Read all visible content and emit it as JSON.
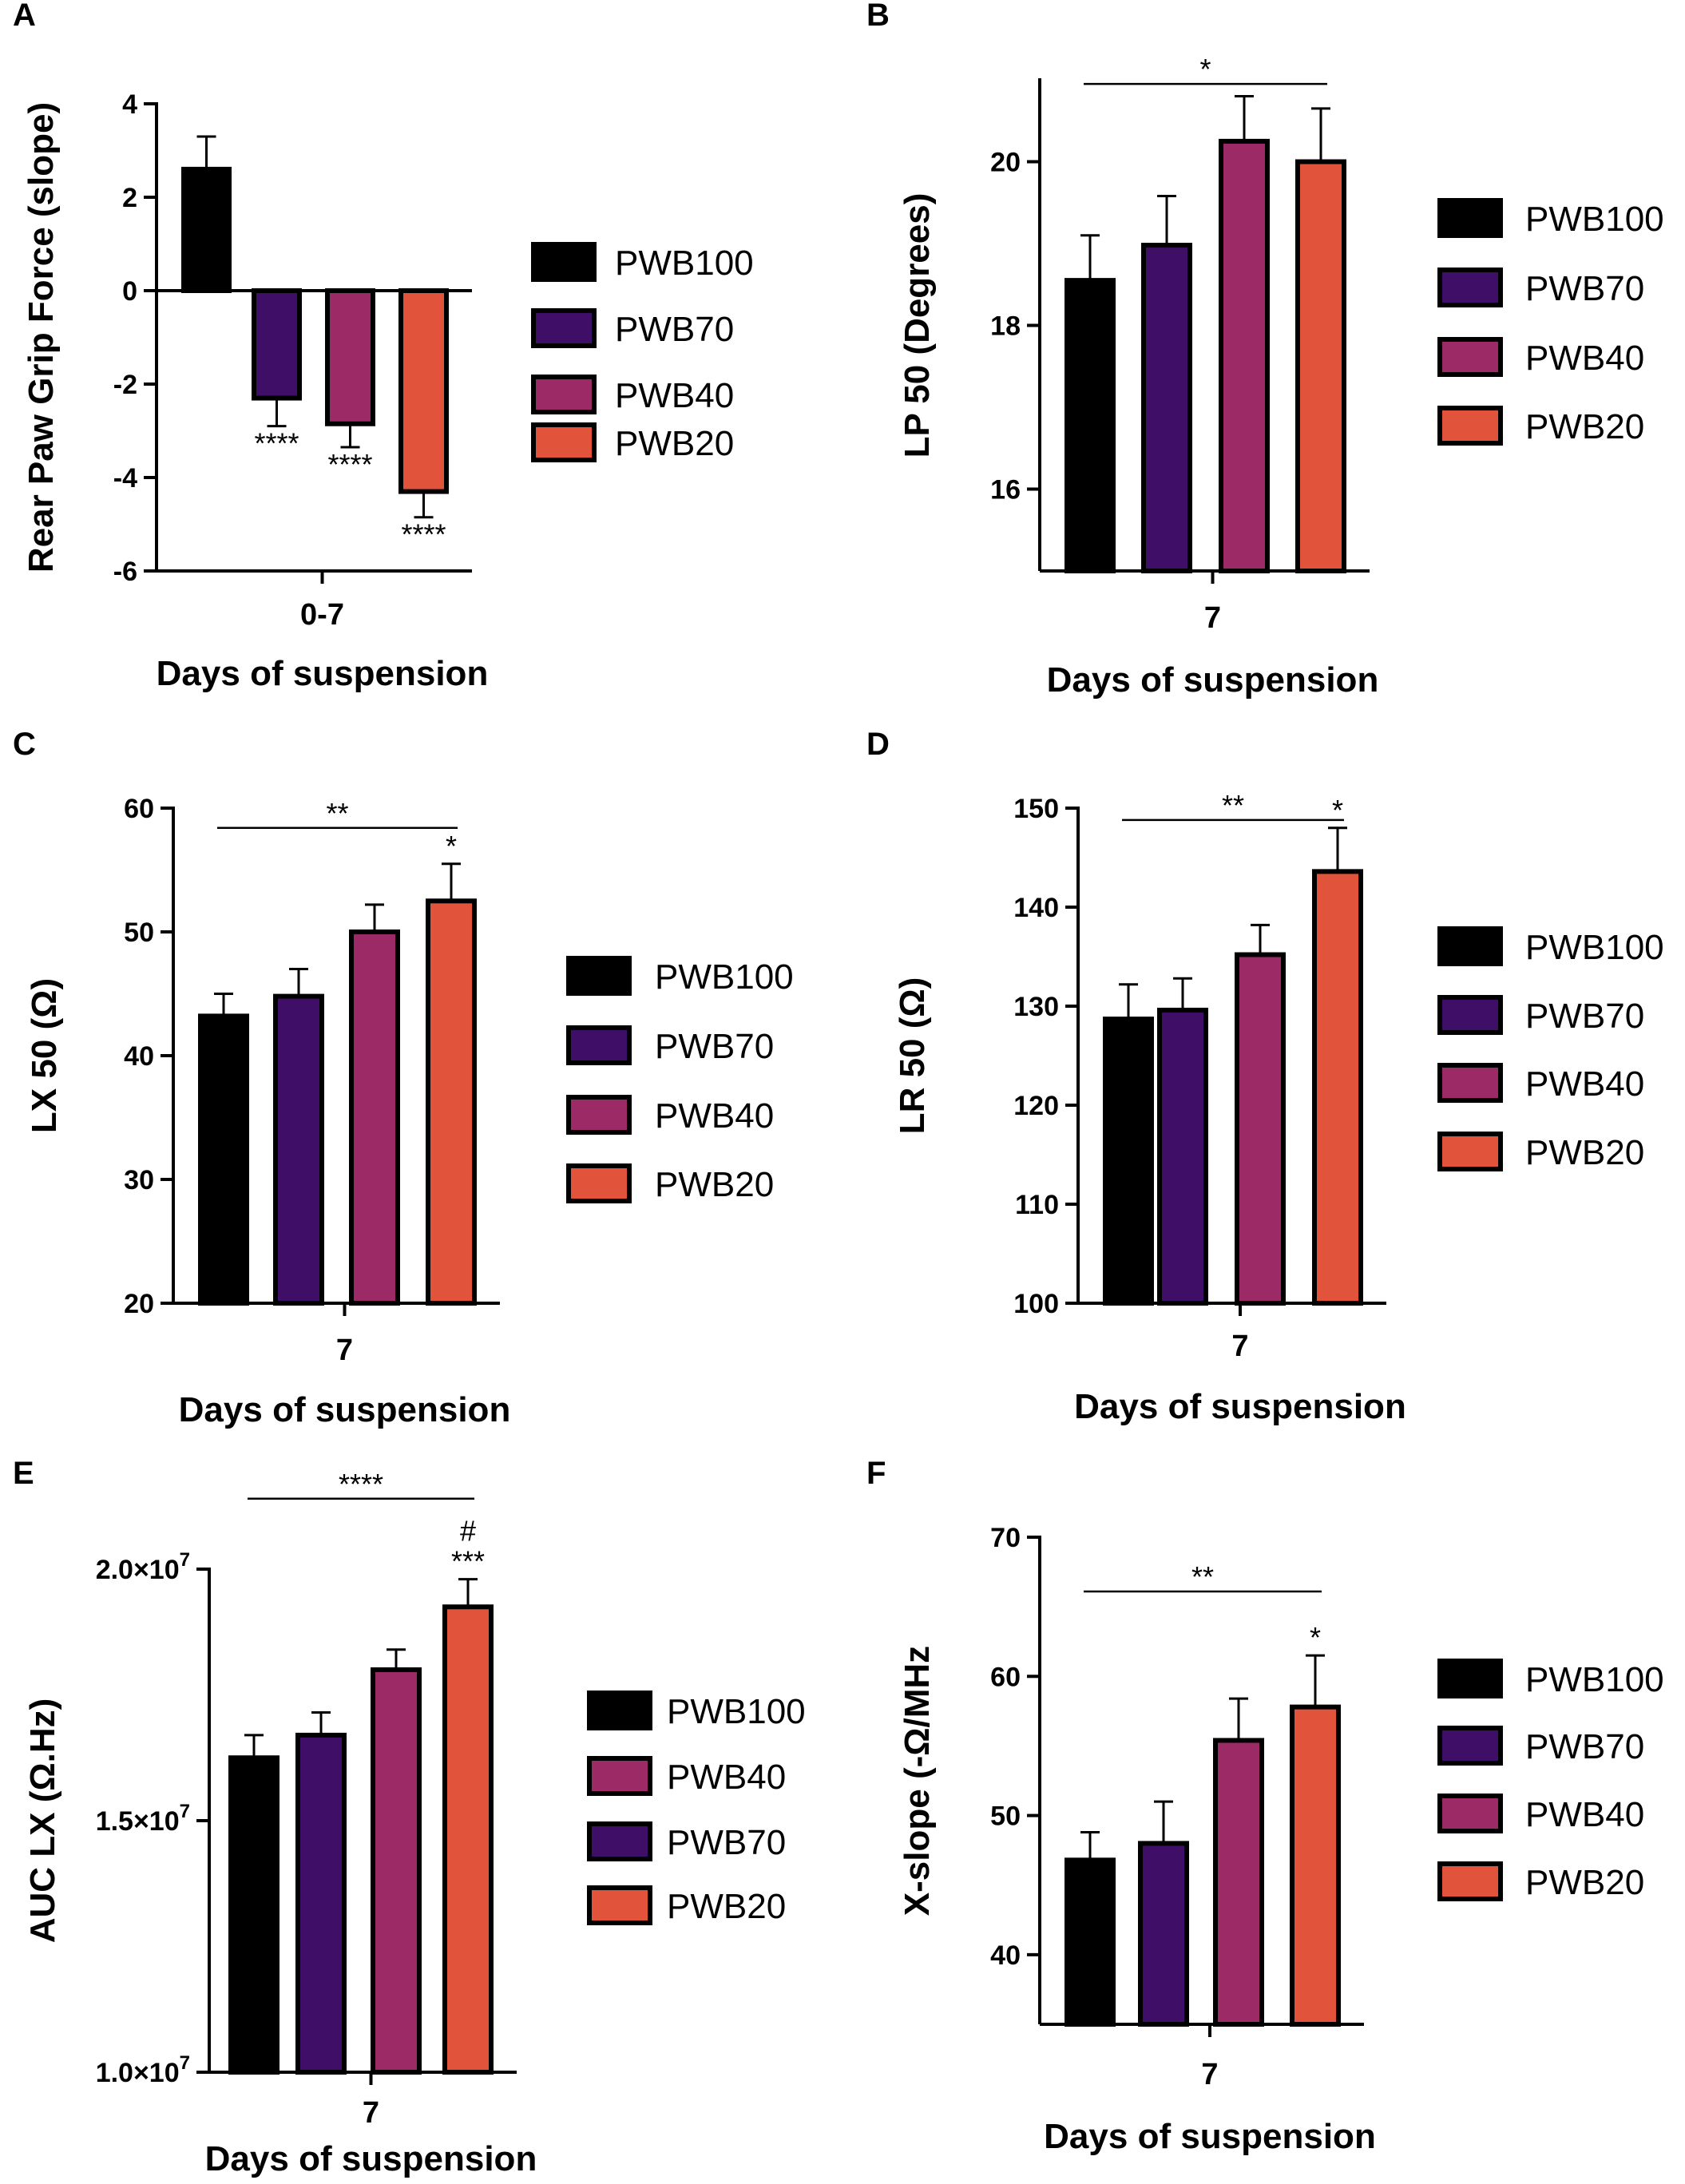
{
  "figure": {
    "colors": {
      "PWB100": "#000000",
      "PWB70": "#3f0e66",
      "PWB40": "#9c2a66",
      "PWB20": "#e2533c",
      "axis": "#000000"
    }
  },
  "chart_data": [
    {
      "panel": "A",
      "type": "bar",
      "ylabel": "Rear Paw Grip  Force (slope)",
      "xlabel": "Days of suspension",
      "category": "0-7",
      "ylim": [
        -6,
        4
      ],
      "yticks": [
        -6,
        -4,
        -2,
        0,
        2,
        4
      ],
      "ytick_labels": [
        "-6",
        "-4",
        "-2",
        "0",
        "2",
        "4"
      ],
      "series": [
        {
          "name": "PWB100",
          "value": 2.6,
          "error": 0.7,
          "sig": ""
        },
        {
          "name": "PWB70",
          "value": -2.3,
          "error": 0.6,
          "sig": "****"
        },
        {
          "name": "PWB40",
          "value": -2.85,
          "error": 0.5,
          "sig": "****"
        },
        {
          "name": "PWB20",
          "value": -4.3,
          "error": 0.55,
          "sig": "****"
        }
      ],
      "legend": [
        "PWB100",
        "PWB70",
        "PWB40",
        "PWB20"
      ],
      "bracket": null
    },
    {
      "panel": "B",
      "type": "bar",
      "ylabel": "LP 50 (Degrees)",
      "xlabel": "Days of suspension",
      "category": "7",
      "ylim": [
        15,
        21
      ],
      "yticks": [
        16,
        18,
        20
      ],
      "ytick_labels": [
        "16",
        "18",
        "20"
      ],
      "series": [
        {
          "name": "PWB100",
          "value": 18.55,
          "error": 0.55,
          "sig": ""
        },
        {
          "name": "PWB70",
          "value": 18.98,
          "error": 0.6,
          "sig": ""
        },
        {
          "name": "PWB40",
          "value": 20.25,
          "error": 0.55,
          "sig": ""
        },
        {
          "name": "PWB20",
          "value": 20.0,
          "error": 0.65,
          "sig": ""
        }
      ],
      "legend": [
        "PWB100",
        "PWB70",
        "PWB40",
        "PWB20"
      ],
      "bracket": {
        "from": 0,
        "to": 3,
        "label": "*",
        "value": 20.95
      }
    },
    {
      "panel": "C",
      "type": "bar",
      "ylabel": "LX 50 (Ω)",
      "xlabel": "Days of suspension",
      "category": "7",
      "ylim": [
        20,
        60
      ],
      "yticks": [
        20,
        30,
        40,
        50,
        60
      ],
      "ytick_labels": [
        "20",
        "30",
        "40",
        "50",
        "60"
      ],
      "series": [
        {
          "name": "PWB100",
          "value": 43.2,
          "error": 1.8,
          "sig": ""
        },
        {
          "name": "PWB70",
          "value": 44.8,
          "error": 2.2,
          "sig": ""
        },
        {
          "name": "PWB40",
          "value": 50.0,
          "error": 2.2,
          "sig": ""
        },
        {
          "name": "PWB20",
          "value": 52.5,
          "error": 3.0,
          "sig": "*"
        }
      ],
      "legend": [
        "PWB100",
        "PWB70",
        "PWB40",
        "PWB20"
      ],
      "bracket": {
        "from": 0,
        "to": 3,
        "label": "**",
        "value": 58.4
      }
    },
    {
      "panel": "D",
      "type": "bar",
      "ylabel": "LR 50 (Ω)",
      "xlabel": "Days of suspension",
      "category": "7",
      "ylim": [
        100,
        150
      ],
      "yticks": [
        100,
        110,
        120,
        130,
        140,
        150
      ],
      "ytick_labels": [
        "100",
        "110",
        "120",
        "130",
        "140",
        "150"
      ],
      "series": [
        {
          "name": "PWB100",
          "value": 128.7,
          "error": 3.5,
          "sig": ""
        },
        {
          "name": "PWB70",
          "value": 129.6,
          "error": 3.2,
          "sig": ""
        },
        {
          "name": "PWB40",
          "value": 135.2,
          "error": 3.0,
          "sig": ""
        },
        {
          "name": "PWB20",
          "value": 143.6,
          "error": 4.4,
          "sig": "*"
        }
      ],
      "legend": [
        "PWB100",
        "PWB70",
        "PWB40",
        "PWB20"
      ],
      "bracket": {
        "from": 0,
        "to": 3,
        "label": "**",
        "value": 148.8
      }
    },
    {
      "panel": "E",
      "type": "bar",
      "ylabel": "AUC LX (Ω.Hz)",
      "xlabel": "Days of suspension",
      "category": "7",
      "ylim": [
        10000000,
        20000000
      ],
      "yticks": [
        10000000,
        15000000,
        20000000
      ],
      "ytick_mantissa": [
        "1.0×10",
        "1.5×10",
        "2.0×10"
      ],
      "ytick_exponent": "7",
      "series": [
        {
          "name": "PWB100",
          "value": 16250000,
          "error": 450000,
          "sig": ""
        },
        {
          "name": "PWB70",
          "value": 16700000,
          "error": 450000,
          "sig": ""
        },
        {
          "name": "PWB40",
          "value": 18000000,
          "error": 400000,
          "sig": ""
        },
        {
          "name": "PWB20",
          "value": 19250000,
          "error": 550000,
          "sig": "***",
          "sig2": "#"
        }
      ],
      "legend": [
        "PWB100",
        "PWB40",
        "PWB70",
        "PWB20"
      ],
      "bracket": {
        "from": 0,
        "to": 3,
        "label": "****",
        "value": 21400000
      }
    },
    {
      "panel": "F",
      "type": "bar",
      "ylabel": "X-slope (-Ω/MHz",
      "xlabel": "Days of suspension",
      "category": "7",
      "ylim": [
        35,
        70
      ],
      "yticks": [
        40,
        50,
        60,
        70
      ],
      "ytick_labels": [
        "40",
        "50",
        "60",
        "70"
      ],
      "series": [
        {
          "name": "PWB100",
          "value": 46.8,
          "error": 2.0,
          "sig": ""
        },
        {
          "name": "PWB70",
          "value": 48.0,
          "error": 3.0,
          "sig": ""
        },
        {
          "name": "PWB40",
          "value": 55.4,
          "error": 3.0,
          "sig": ""
        },
        {
          "name": "PWB20",
          "value": 57.8,
          "error": 3.7,
          "sig": "*"
        }
      ],
      "legend": [
        "PWB100",
        "PWB70",
        "PWB40",
        "PWB20"
      ],
      "bracket": {
        "from": 0,
        "to": 3,
        "label": "**",
        "value": 66.1
      }
    }
  ]
}
